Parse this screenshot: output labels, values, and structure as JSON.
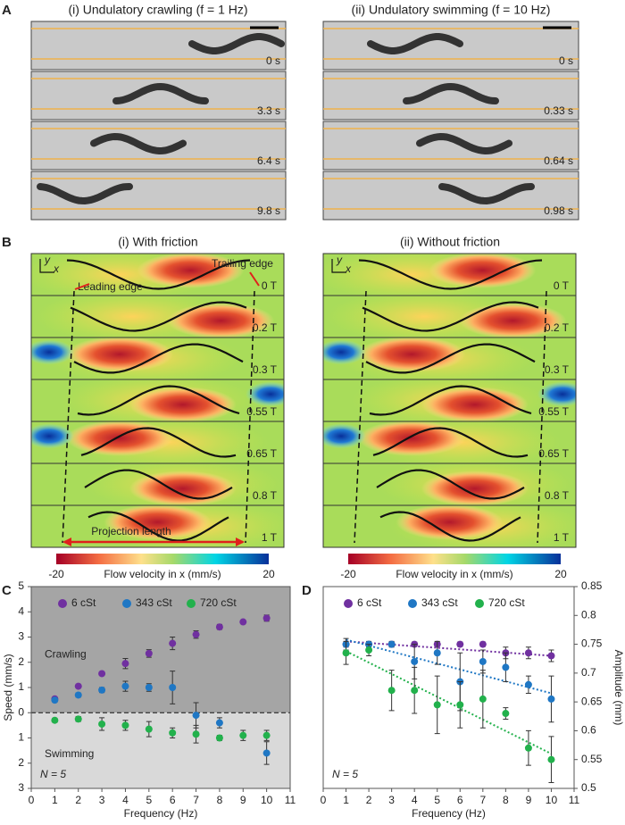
{
  "panel_labels": [
    "A",
    "B",
    "C",
    "D"
  ],
  "panel_a": {
    "columns": [
      {
        "title": "(i) Undulatory crawling (f = 1 Hz)",
        "times": [
          "0 s",
          "3.3 s",
          "6.4 s",
          "9.8 s"
        ]
      },
      {
        "title": "(ii) Undulatory swimming (f = 10 Hz)",
        "times": [
          "0 s",
          "0.33 s",
          "0.64 s",
          "0.98 s"
        ]
      }
    ]
  },
  "panel_b": {
    "columns": [
      {
        "title": "(i) With friction"
      },
      {
        "title": "(ii) Without friction"
      }
    ],
    "phases": [
      "0 T",
      "0.2 T",
      "0.3 T",
      "0.55 T",
      "0.65 T",
      "0.8 T",
      "1 T"
    ],
    "annotations": {
      "trailing_edge": "Trailing edge",
      "leading_edge": "Leading edge",
      "projection_length": "Projection length"
    },
    "axis_labels": {
      "y": "y",
      "x": "x"
    },
    "colorbar": {
      "label": "Flow velocity in x (mm/s)",
      "min": -20,
      "max": 20
    }
  },
  "chart_data": [
    {
      "type": "scatter",
      "xlabel": "Frequency (Hz)",
      "ylabel": "Speed (mm/s)",
      "xlim": [
        0,
        11
      ],
      "xticks": [
        0,
        1,
        2,
        3,
        4,
        5,
        6,
        7,
        8,
        9,
        10,
        11
      ],
      "ylim": [
        -3,
        5
      ],
      "yticks": [
        {
          "value": -3,
          "label": "3"
        },
        {
          "value": -2,
          "label": "2"
        },
        {
          "value": -1,
          "label": "1"
        },
        0,
        1,
        2,
        3,
        4,
        5
      ],
      "region_labels": [
        "Crawling",
        "Swimming"
      ],
      "note": "N = 5",
      "x": [
        1,
        2,
        3,
        4,
        5,
        6,
        7,
        8,
        9,
        10
      ],
      "series": [
        {
          "name": "6 cSt",
          "color": "#7030a0",
          "values": [
            0.55,
            1.05,
            1.55,
            1.95,
            2.35,
            2.75,
            3.1,
            3.4,
            3.6,
            3.75
          ],
          "errors": [
            0.05,
            0.05,
            0.05,
            0.2,
            0.15,
            0.25,
            0.15,
            0.1,
            0.05,
            0.12
          ]
        },
        {
          "name": "343 cSt",
          "color": "#1f77c4",
          "values": [
            0.5,
            0.7,
            0.9,
            1.05,
            1.0,
            1.0,
            -0.1,
            -0.4,
            null,
            -1.6
          ],
          "errors": [
            0.08,
            0.08,
            0.1,
            0.2,
            0.15,
            0.65,
            0.5,
            0.2,
            null,
            0.45
          ]
        },
        {
          "name": "720 cSt",
          "color": "#22b14c",
          "values": [
            -0.3,
            -0.25,
            -0.45,
            -0.5,
            -0.65,
            -0.8,
            -0.85,
            -1.0,
            -0.9,
            -0.9
          ],
          "errors": [
            0.08,
            0.1,
            0.25,
            0.2,
            0.3,
            0.2,
            0.35,
            0.1,
            0.2,
            0.2
          ]
        }
      ]
    },
    {
      "type": "scatter",
      "xlabel": "Frequency (Hz)",
      "ylabel": "Amplitude (mm)",
      "y_axis_side": "right",
      "xlim": [
        0,
        11
      ],
      "xticks": [
        0,
        1,
        2,
        3,
        4,
        5,
        6,
        7,
        8,
        9,
        10,
        11
      ],
      "ylim": [
        0.5,
        0.85
      ],
      "yticks": [
        0.5,
        0.55,
        0.6,
        0.65,
        0.7,
        0.75,
        0.8,
        0.85
      ],
      "note": "N = 5",
      "x": [
        1,
        2,
        3,
        4,
        5,
        6,
        7,
        8,
        9,
        10
      ],
      "series": [
        {
          "name": "6 cSt",
          "color": "#7030a0",
          "values": [
            0.75,
            0.75,
            0.75,
            0.75,
            0.75,
            0.75,
            0.75,
            0.735,
            0.735,
            0.73
          ],
          "errors": [
            0.005,
            0.003,
            0.003,
            0.004,
            0.004,
            0.004,
            0.004,
            0.01,
            0.01,
            0.01
          ],
          "fit": [
            0.755,
            0.73
          ]
        },
        {
          "name": "343 cSt",
          "color": "#1f77c4",
          "values": [
            0.75,
            0.75,
            0.75,
            0.72,
            0.735,
            0.685,
            0.72,
            0.71,
            0.68,
            0.655
          ],
          "errors": [
            0.01,
            0.005,
            0.005,
            0.03,
            0.02,
            0.05,
            0.02,
            0.025,
            0.015,
            0.04
          ],
          "fit": [
            0.758,
            0.665
          ]
        },
        {
          "name": "720 cSt",
          "color": "#22b14c",
          "values": [
            0.735,
            0.74,
            0.67,
            0.67,
            0.645,
            0.645,
            0.655,
            0.63,
            0.57,
            0.55
          ],
          "errors": [
            0.02,
            0.01,
            0.035,
            0.04,
            0.05,
            0.04,
            0.05,
            0.01,
            0.03,
            0.04
          ],
          "fit": [
            0.738,
            0.56
          ]
        }
      ]
    }
  ]
}
